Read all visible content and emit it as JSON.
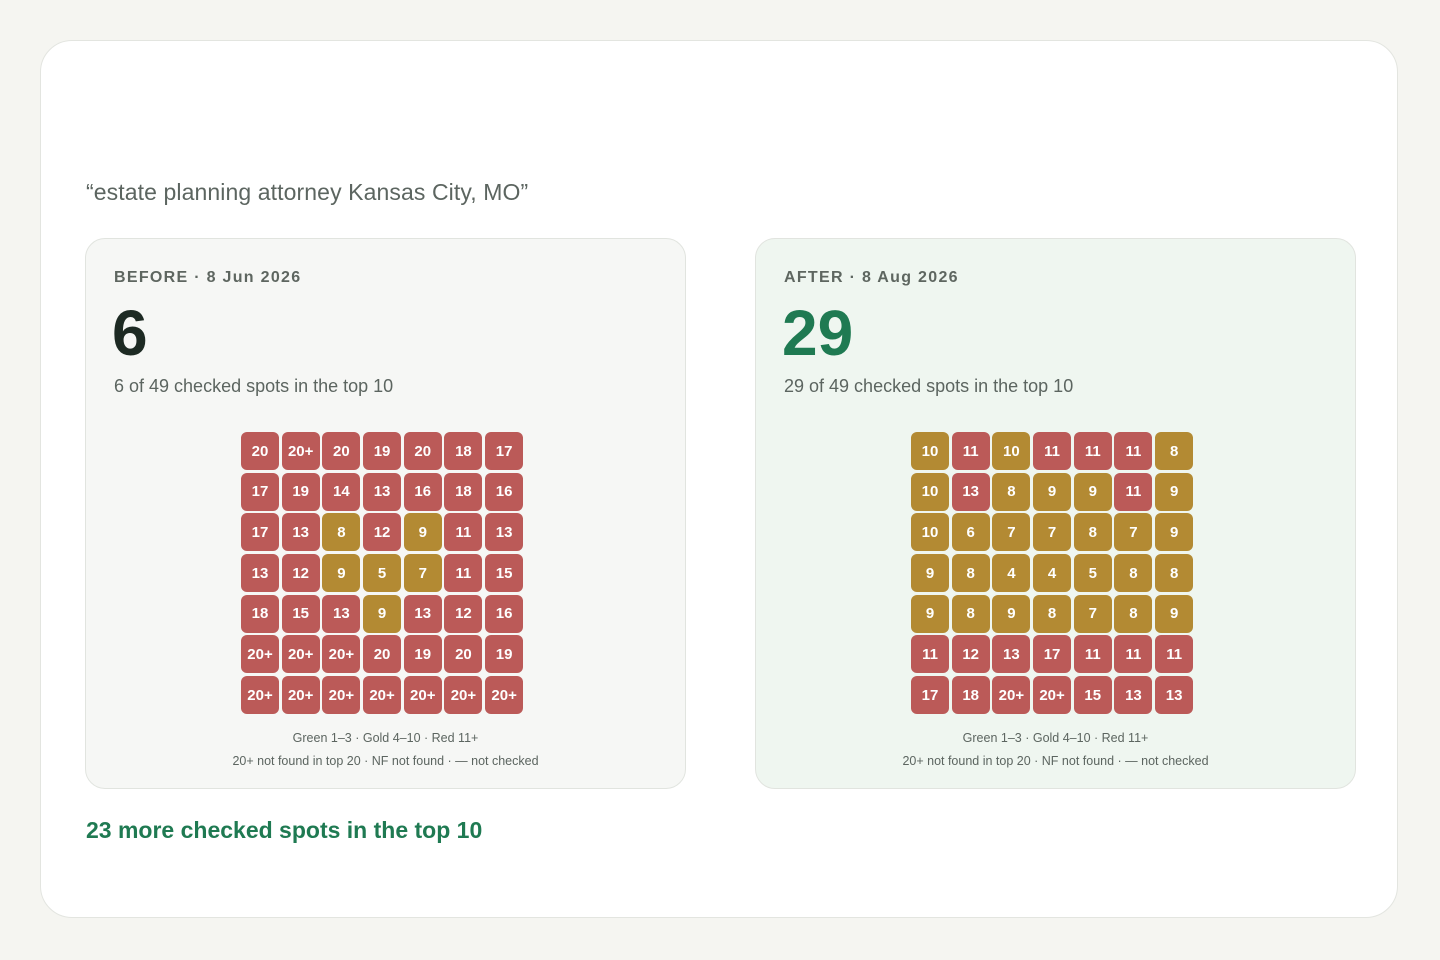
{
  "keyword": "“estate planning attorney Kansas City, MO”",
  "colors": {
    "green": "#2f8a5b",
    "gold": "#b38a33",
    "red": "#bb5a58",
    "accent": "#1f7a52"
  },
  "before": {
    "label": "BEFORE · 8 Jun 2026",
    "count": "6",
    "subtitle": "6 of 49 checked spots in the top 10",
    "grid": [
      [
        "20",
        "20+",
        "20",
        "19",
        "20",
        "18",
        "17"
      ],
      [
        "17",
        "19",
        "14",
        "13",
        "16",
        "18",
        "16"
      ],
      [
        "17",
        "13",
        "8",
        "12",
        "9",
        "11",
        "13"
      ],
      [
        "13",
        "12",
        "9",
        "5",
        "7",
        "11",
        "15"
      ],
      [
        "18",
        "15",
        "13",
        "9",
        "13",
        "12",
        "16"
      ],
      [
        "20+",
        "20+",
        "20+",
        "20",
        "19",
        "20",
        "19"
      ],
      [
        "20+",
        "20+",
        "20+",
        "20+",
        "20+",
        "20+",
        "20+"
      ]
    ],
    "legend_line1": "Green 1–3 · Gold 4–10 · Red 11+",
    "legend_line2": "20+ not found in top 20 · NF not found · — not checked"
  },
  "after": {
    "label": "AFTER · 8 Aug 2026",
    "count": "29",
    "subtitle": "29 of 49 checked spots in the top 10",
    "grid": [
      [
        "10",
        "11",
        "10",
        "11",
        "11",
        "11",
        "8"
      ],
      [
        "10",
        "13",
        "8",
        "9",
        "9",
        "11",
        "9"
      ],
      [
        "10",
        "6",
        "7",
        "7",
        "8",
        "7",
        "9"
      ],
      [
        "9",
        "8",
        "4",
        "4",
        "5",
        "8",
        "8"
      ],
      [
        "9",
        "8",
        "9",
        "8",
        "7",
        "8",
        "9"
      ],
      [
        "11",
        "12",
        "13",
        "17",
        "11",
        "11",
        "11"
      ],
      [
        "17",
        "18",
        "20+",
        "20+",
        "15",
        "13",
        "13"
      ]
    ],
    "legend_line1": "Green 1–3 · Gold 4–10 · Red 11+",
    "legend_line2": "20+ not found in top 20 · NF not found · — not checked"
  },
  "summary": "23 more checked spots in the top 10"
}
